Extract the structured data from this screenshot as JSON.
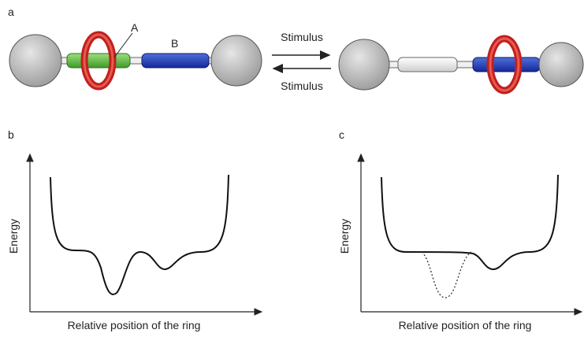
{
  "panel_a": {
    "label": "a",
    "component_a": "A",
    "component_b": "B",
    "stimulus_forward": "Stimulus",
    "stimulus_back": "Stimulus"
  },
  "panel_b": {
    "label": "b",
    "y_label": "Energy",
    "x_label": "Relative position of the ring"
  },
  "panel_c": {
    "label": "c",
    "y_label": "Energy",
    "x_label": "Relative position of the ring"
  }
}
